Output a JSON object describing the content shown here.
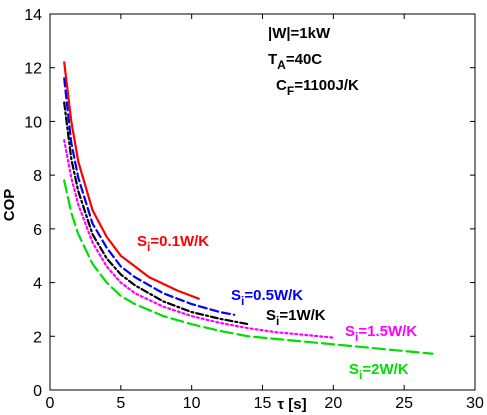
{
  "chart_data": {
    "type": "line",
    "xlabel": "τ [s]",
    "ylabel": "COP",
    "xlim": [
      0,
      30
    ],
    "ylim": [
      0,
      14
    ],
    "xticks": [
      0,
      5,
      10,
      15,
      20,
      25,
      30
    ],
    "yticks": [
      0,
      2,
      4,
      6,
      8,
      10,
      12,
      14
    ],
    "grid": false,
    "annotations": {
      "line1": "|W|=1kW",
      "line2_main": "T",
      "line2_sub": "A",
      "line2_rest": "=40C",
      "line3_main": "C",
      "line3_sub": "F",
      "line3_rest": "=1100J/K"
    },
    "series": [
      {
        "name_main": "S",
        "name_sub": "i",
        "name_rest": "=0.1W/K",
        "color": "#ff0000",
        "dash": "solid",
        "x": [
          1,
          1.5,
          2,
          3,
          4,
          5,
          6,
          7,
          8,
          9,
          10,
          10.5
        ],
        "y": [
          12.2,
          10.0,
          8.5,
          6.7,
          5.7,
          5.0,
          4.6,
          4.2,
          3.95,
          3.7,
          3.5,
          3.4
        ]
      },
      {
        "name_main": "S",
        "name_sub": "i",
        "name_rest": "=0.5W/K",
        "color": "#0000ff",
        "dash": "dashed",
        "x": [
          1,
          1.5,
          2,
          3,
          4,
          5,
          6,
          8,
          10,
          12,
          13
        ],
        "y": [
          11.6,
          9.2,
          7.9,
          6.2,
          5.3,
          4.6,
          4.2,
          3.6,
          3.2,
          2.9,
          2.8
        ]
      },
      {
        "name_main": "S",
        "name_sub": "i",
        "name_rest": "=1W/K",
        "color": "#000000",
        "dash": "dashdot",
        "x": [
          1,
          1.5,
          2,
          3,
          4,
          5,
          6,
          8,
          10,
          12,
          14
        ],
        "y": [
          10.7,
          8.6,
          7.4,
          5.8,
          4.9,
          4.3,
          3.9,
          3.3,
          2.9,
          2.65,
          2.45
        ]
      },
      {
        "name_main": "S",
        "name_sub": "i",
        "name_rest": "=1.5W/K",
        "color": "#ff00ff",
        "dash": "dotted",
        "x": [
          1,
          1.5,
          2,
          3,
          4,
          5,
          6,
          8,
          10,
          12,
          14,
          16,
          18,
          20
        ],
        "y": [
          9.3,
          7.9,
          6.9,
          5.5,
          4.6,
          4.0,
          3.6,
          3.1,
          2.75,
          2.5,
          2.3,
          2.15,
          2.05,
          1.95
        ]
      },
      {
        "name_main": "S",
        "name_sub": "i",
        "name_rest": "=2W/K",
        "color": "#00dd00",
        "dash": "longdash",
        "x": [
          1,
          1.5,
          2,
          3,
          4,
          5,
          6,
          8,
          10,
          12,
          14,
          16,
          18,
          20,
          22,
          24,
          27
        ],
        "y": [
          7.8,
          6.6,
          5.8,
          4.7,
          4.0,
          3.5,
          3.2,
          2.75,
          2.45,
          2.2,
          2.0,
          1.9,
          1.8,
          1.7,
          1.6,
          1.5,
          1.35
        ]
      }
    ]
  }
}
